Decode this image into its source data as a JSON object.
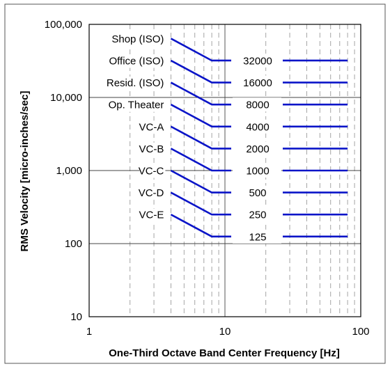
{
  "chart_data": {
    "type": "line",
    "title": "",
    "xlabel": "One-Third Octave Band Center Frequency [Hz]",
    "ylabel": "RMS Velocity [micro-inches/sec]",
    "xscale": "log",
    "yscale": "log",
    "xlim": [
      1,
      100
    ],
    "ylim": [
      10,
      100000
    ],
    "x_tick_labels": [
      "1",
      "10",
      "100"
    ],
    "x_tick_values": [
      1,
      10,
      100
    ],
    "y_tick_labels": [
      "10",
      "100",
      "1,000",
      "10,000",
      "100,000"
    ],
    "y_tick_values": [
      10,
      100,
      1000,
      10000,
      100000
    ],
    "grid": {
      "major_horizontal": true,
      "major_vertical": true,
      "minor_vertical": "dashed",
      "minor_x_values": [
        2,
        3,
        4,
        5,
        6,
        7,
        8,
        9,
        20,
        30,
        40,
        50,
        60,
        70,
        80,
        90
      ]
    },
    "line_color": "#0a14c8",
    "curves": [
      {
        "name": "Shop (ISO)",
        "value_label": "32000",
        "flat_value": 32000,
        "start": [
          4,
          64000
        ],
        "knee": [
          8,
          32000
        ],
        "end": [
          80,
          32000
        ]
      },
      {
        "name": "Office (ISO)",
        "value_label": "16000",
        "flat_value": 16000,
        "start": [
          4,
          32000
        ],
        "knee": [
          8,
          16000
        ],
        "end": [
          80,
          16000
        ]
      },
      {
        "name": "Resid. (ISO)",
        "value_label": "8000",
        "flat_value": 8000,
        "start": [
          4,
          16000
        ],
        "knee": [
          8,
          8000
        ],
        "end": [
          80,
          8000
        ]
      },
      {
        "name": "Op. Theater",
        "value_label": "4000",
        "flat_value": 4000,
        "start": [
          4,
          8000
        ],
        "knee": [
          8,
          4000
        ],
        "end": [
          80,
          4000
        ]
      },
      {
        "name": "VC-A",
        "value_label": "2000",
        "flat_value": 2000,
        "start": [
          4,
          4000
        ],
        "knee": [
          8,
          2000
        ],
        "end": [
          80,
          2000
        ]
      },
      {
        "name": "VC-B",
        "value_label": "1000",
        "flat_value": 1000,
        "start": [
          4,
          2000
        ],
        "knee": [
          8,
          1000
        ],
        "end": [
          80,
          1000
        ]
      },
      {
        "name": "VC-C",
        "value_label": "500",
        "flat_value": 500,
        "start": [
          4,
          1000
        ],
        "knee": [
          8,
          500
        ],
        "end": [
          80,
          500
        ]
      },
      {
        "name": "VC-D",
        "value_label": "250",
        "flat_value": 250,
        "start": [
          4,
          500
        ],
        "knee": [
          8,
          250
        ],
        "end": [
          80,
          250
        ]
      },
      {
        "name": "VC-E",
        "value_label": "125",
        "flat_value": 125,
        "start": [
          4,
          250
        ],
        "knee": [
          8,
          125
        ],
        "end": [
          80,
          125
        ]
      }
    ]
  }
}
